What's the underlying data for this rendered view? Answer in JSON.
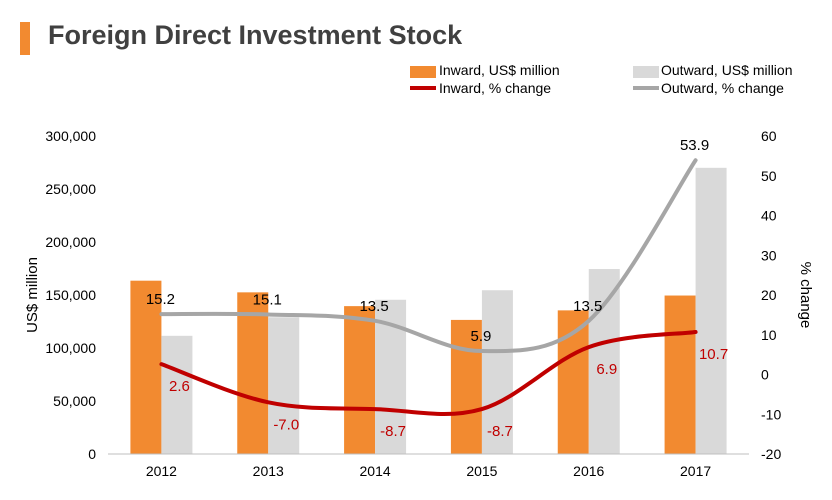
{
  "title": "Foreign Direct Investment Stock",
  "colors": {
    "inward_bar": "#f28a30",
    "outward_bar": "#d9d9d9",
    "inward_line": "#c00000",
    "outward_line": "#a6a6a6",
    "title_accent": "#f28a30"
  },
  "legend": {
    "inward_bar": "Inward, US$ million",
    "outward_bar": "Outward, US$ million",
    "inward_line": "Inward, % change",
    "outward_line": "Outward, % change"
  },
  "chart_data": {
    "type": "bar",
    "categories": [
      "2012",
      "2013",
      "2014",
      "2015",
      "2016",
      "2017"
    ],
    "series": [
      {
        "name": "Inward, US$ million",
        "type": "bar",
        "axis": "left",
        "values": [
          163500,
          152500,
          139500,
          126500,
          135500,
          149500
        ]
      },
      {
        "name": "Outward, US$ million",
        "type": "bar",
        "axis": "left",
        "values": [
          111500,
          129000,
          145500,
          154500,
          174500,
          270000
        ]
      },
      {
        "name": "Inward, % change",
        "type": "line",
        "axis": "right",
        "values": [
          2.6,
          -7.0,
          -8.7,
          -8.7,
          6.9,
          10.7
        ],
        "labels": [
          "2.6",
          "-7.0",
          "-8.7",
          "-8.7",
          "6.9",
          "10.7"
        ]
      },
      {
        "name": "Outward, % change",
        "type": "line",
        "axis": "right",
        "values": [
          15.2,
          15.1,
          13.5,
          5.9,
          13.5,
          53.9
        ],
        "labels": [
          "15.2",
          "15.1",
          "13.5",
          "5.9",
          "13.5",
          "53.9"
        ]
      }
    ],
    "ylabel": "US$ million",
    "y2label": "% change",
    "ylim": [
      0,
      300000
    ],
    "y2lim": [
      -20,
      60
    ],
    "yticks": [
      "0",
      "50,000",
      "100,000",
      "150,000",
      "200,000",
      "250,000",
      "300,000"
    ],
    "y2ticks": [
      "-20",
      "-10",
      "0",
      "10",
      "20",
      "30",
      "40",
      "50",
      "60"
    ],
    "grid": false,
    "legend_position": "top-right"
  }
}
